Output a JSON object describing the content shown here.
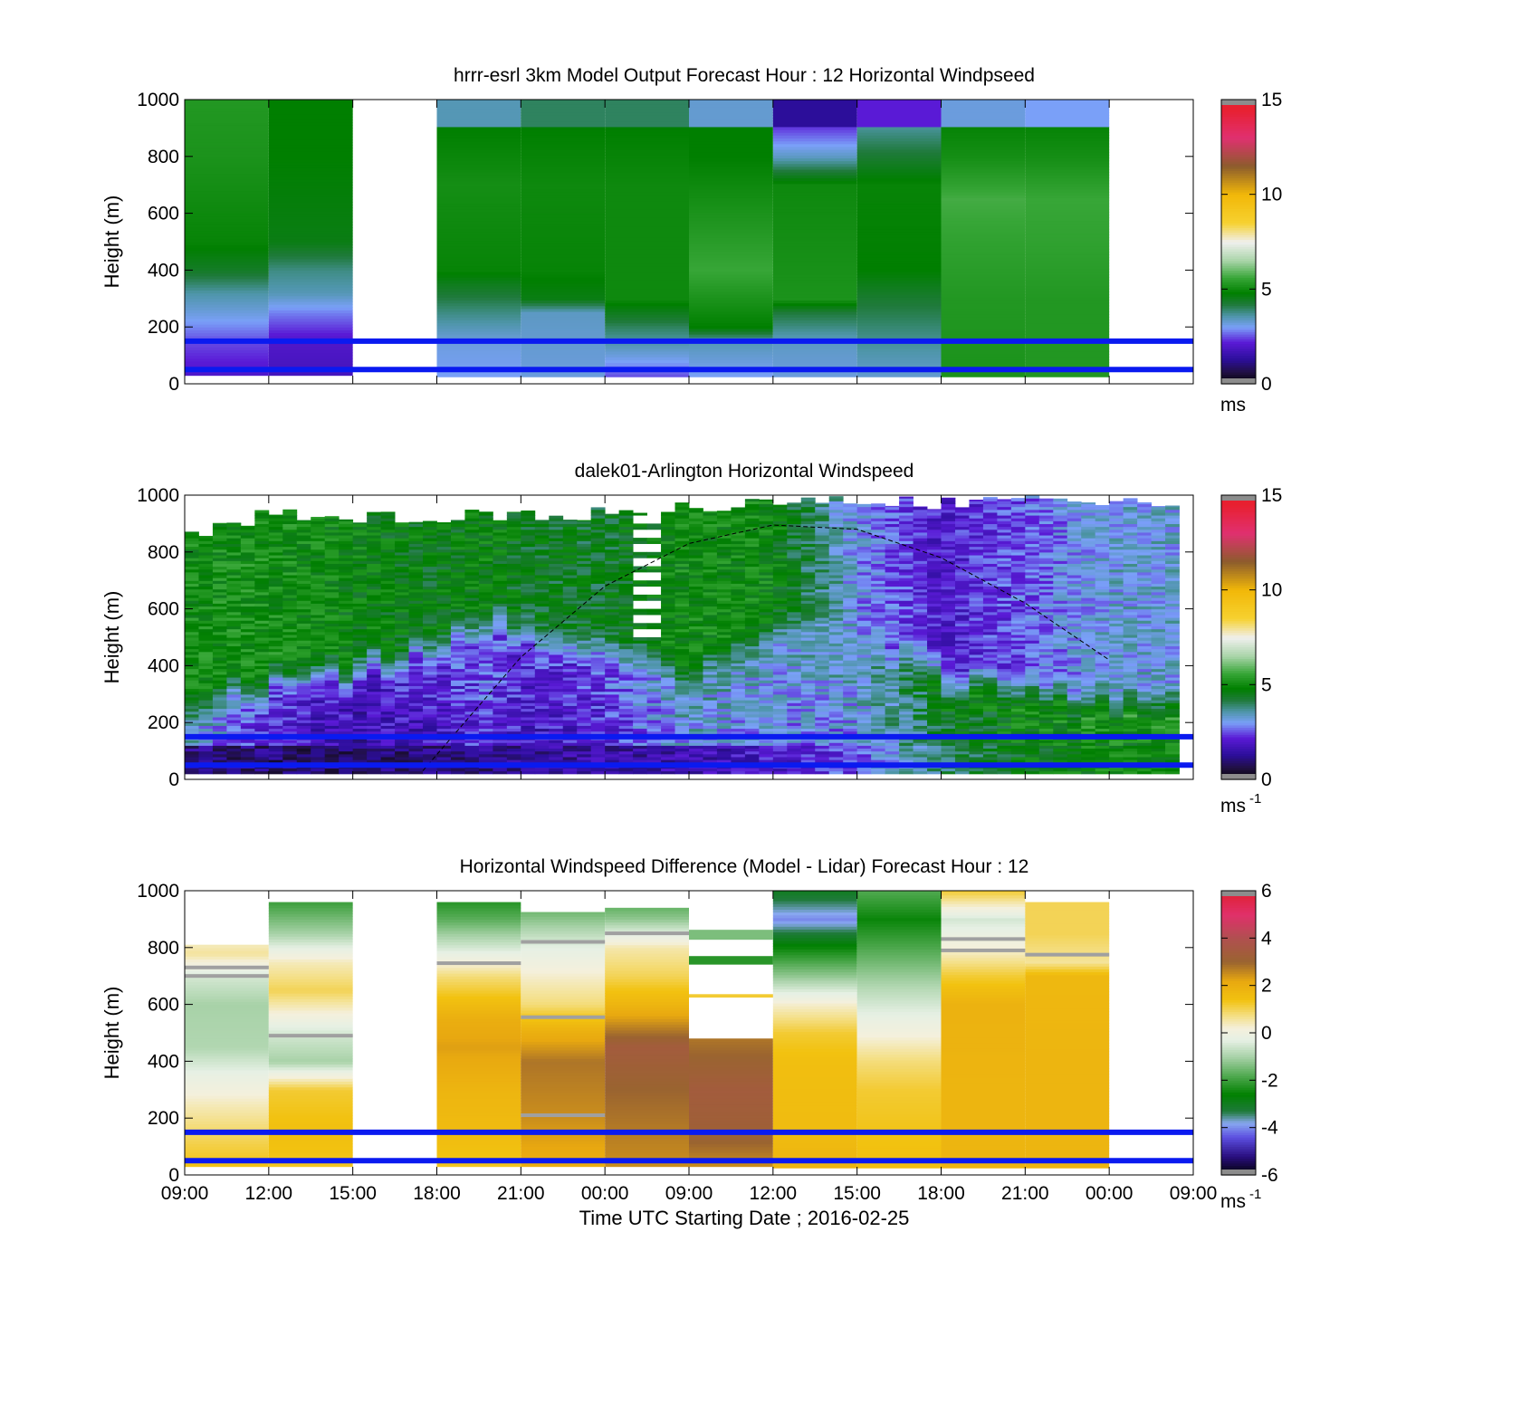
{
  "chart_data": [
    {
      "type": "heatmap",
      "title": "hrrr-esrl 3km Model Output   Forecast Hour : 12 Horizontal Windpseed",
      "ylabel": "Height (m)",
      "ylim": [
        0,
        1000
      ],
      "yticks": [
        "0",
        "200",
        "400",
        "600",
        "800",
        "1000"
      ],
      "colorbar": {
        "range": [
          0,
          15
        ],
        "ticks": [
          "0",
          "5",
          "10",
          "15"
        ],
        "unit": "ms",
        "unit_sup": ""
      },
      "colormap": "speed",
      "reference_lines_m": [
        50,
        150
      ],
      "columns": [
        {
          "start": 0,
          "end": 3,
          "top": 1000,
          "bottom": 30,
          "profile": [
            [
              30,
              2.0
            ],
            [
              150,
              2.5
            ],
            [
              250,
              3.2
            ],
            [
              320,
              3.6
            ],
            [
              400,
              4.4
            ],
            [
              500,
              4.9
            ],
            [
              800,
              5.2
            ],
            [
              1000,
              5.3
            ]
          ]
        },
        {
          "start": 3,
          "end": 6,
          "top": 1000,
          "bottom": 30,
          "profile": [
            [
              30,
              1.8
            ],
            [
              150,
              2.0
            ],
            [
              250,
              2.8
            ],
            [
              320,
              3.5
            ],
            [
              400,
              3.8
            ],
            [
              500,
              4.6
            ],
            [
              800,
              4.8
            ],
            [
              1000,
              4.8
            ]
          ]
        },
        {
          "start": 9,
          "end": 12,
          "top": 1000,
          "bottom": 25,
          "profile": [
            [
              25,
              3.0
            ],
            [
              150,
              3.2
            ],
            [
              250,
              3.8
            ],
            [
              350,
              4.5
            ],
            [
              400,
              4.9
            ],
            [
              700,
              5.1
            ],
            [
              900,
              4.8
            ],
            [
              910,
              3.5
            ],
            [
              1000,
              3.5
            ]
          ]
        },
        {
          "start": 12,
          "end": 15,
          "top": 1000,
          "bottom": 25,
          "profile": [
            [
              25,
              3.2
            ],
            [
              150,
              3.3
            ],
            [
              250,
              3.4
            ],
            [
              300,
              4.6
            ],
            [
              400,
              4.9
            ],
            [
              700,
              5.0
            ],
            [
              900,
              4.8
            ],
            [
              910,
              4.0
            ],
            [
              1000,
              4.0
            ]
          ]
        },
        {
          "start": 15,
          "end": 18,
          "top": 1000,
          "bottom": 25,
          "profile": [
            [
              25,
              2.5
            ],
            [
              100,
              3.2
            ],
            [
              200,
              4.0
            ],
            [
              300,
              5.0
            ],
            [
              700,
              5.0
            ],
            [
              900,
              4.8
            ],
            [
              910,
              4.0
            ],
            [
              1000,
              4.0
            ]
          ]
        },
        {
          "start": 18,
          "end": 21,
          "top": 1000,
          "bottom": 25,
          "profile": [
            [
              25,
              3.0
            ],
            [
              150,
              3.5
            ],
            [
              200,
              4.8
            ],
            [
              400,
              5.6
            ],
            [
              600,
              5.2
            ],
            [
              800,
              4.8
            ],
            [
              900,
              4.8
            ],
            [
              910,
              3.3
            ],
            [
              1000,
              3.3
            ]
          ]
        },
        {
          "start": 21,
          "end": 24,
          "top": 1000,
          "bottom": 25,
          "profile": [
            [
              25,
              3.2
            ],
            [
              150,
              3.4
            ],
            [
              250,
              4.2
            ],
            [
              300,
              5.2
            ],
            [
              700,
              5.0
            ],
            [
              800,
              3.4
            ],
            [
              900,
              2.4
            ],
            [
              910,
              1.3
            ],
            [
              1000,
              1.3
            ]
          ]
        },
        {
          "start": 24,
          "end": 27,
          "top": 1000,
          "bottom": 25,
          "profile": [
            [
              25,
              3.3
            ],
            [
              150,
              3.7
            ],
            [
              300,
              4.3
            ],
            [
              400,
              4.8
            ],
            [
              700,
              4.9
            ],
            [
              800,
              4.3
            ],
            [
              900,
              3.7
            ],
            [
              910,
              2.2
            ],
            [
              1000,
              2.2
            ]
          ]
        },
        {
          "start": 27,
          "end": 30,
          "top": 1000,
          "bottom": 25,
          "profile": [
            [
              25,
              5.2
            ],
            [
              300,
              5.3
            ],
            [
              500,
              5.5
            ],
            [
              650,
              5.7
            ],
            [
              800,
              5.1
            ],
            [
              900,
              4.9
            ],
            [
              910,
              3.2
            ],
            [
              1000,
              3.2
            ]
          ]
        },
        {
          "start": 30,
          "end": 33,
          "top": 1000,
          "bottom": 25,
          "profile": [
            [
              25,
              5.3
            ],
            [
              300,
              5.3
            ],
            [
              500,
              5.5
            ],
            [
              650,
              5.6
            ],
            [
              800,
              5.1
            ],
            [
              900,
              4.9
            ],
            [
              910,
              3.0
            ],
            [
              1000,
              3.0
            ]
          ]
        }
      ]
    },
    {
      "type": "heatmap",
      "title": "dalek01-Arlington  Horizontal Windspeed",
      "ylabel": "Height (m)",
      "ylim": [
        0,
        1000
      ],
      "yticks": [
        "0",
        "200",
        "400",
        "600",
        "800",
        "1000"
      ],
      "colorbar": {
        "range": [
          0,
          15
        ],
        "ticks": [
          "0",
          "5",
          "10",
          "15"
        ],
        "unit": "ms",
        "unit_sup": "-1"
      },
      "colormap": "speed",
      "reference_lines_m": [
        50,
        150
      ],
      "curve": {
        "style": "dashed",
        "x": [
          8.5,
          12,
          15,
          18,
          21,
          24,
          27,
          30,
          33
        ],
        "y": [
          30,
          430,
          680,
          830,
          895,
          880,
          780,
          620,
          420
        ]
      },
      "gap": {
        "start": 16.2,
        "end": 17,
        "from": 480,
        "to": 1000
      },
      "profiles": [
        {
          "t": 0,
          "top": 870,
          "pbl": 200,
          "low": 1.2,
          "mid": 3.6,
          "up": 5.0
        },
        {
          "t": 3,
          "top": 960,
          "pbl": 280,
          "low": 1.0,
          "mid": 2.4,
          "up": 5.1
        },
        {
          "t": 6,
          "top": 940,
          "pbl": 300,
          "low": 1.0,
          "mid": 1.9,
          "up": 4.8
        },
        {
          "t": 9,
          "top": 950,
          "pbl": 420,
          "low": 1.1,
          "mid": 2.3,
          "up": 4.6
        },
        {
          "t": 11,
          "top": 960,
          "pbl": 520,
          "low": 1.2,
          "mid": 2.8,
          "up": 4.8
        },
        {
          "t": 12,
          "top": 950,
          "pbl": 460,
          "low": 1.3,
          "mid": 2.2,
          "up": 4.5
        },
        {
          "t": 15,
          "top": 960,
          "pbl": 420,
          "low": 1.5,
          "mid": 2.5,
          "up": 4.4
        },
        {
          "t": 18,
          "top": 990,
          "pbl": 320,
          "low": 1.6,
          "mid": 3.5,
          "up": 5.0
        },
        {
          "t": 21,
          "top": 1000,
          "pbl": 480,
          "low": 2.0,
          "mid": 3.3,
          "up": 4.9
        },
        {
          "t": 24,
          "top": 1000,
          "pbl": 420,
          "low": 2.5,
          "mid": 3.3,
          "up": 3.0
        },
        {
          "t": 27,
          "top": 1000,
          "pbl": 300,
          "low": 4.0,
          "mid": 4.6,
          "up": 2.0
        },
        {
          "t": 30,
          "top": 1000,
          "pbl": 250,
          "low": 4.6,
          "mid": 5.0,
          "up": 2.6
        },
        {
          "t": 33,
          "top": 1000,
          "pbl": 200,
          "low": 5.0,
          "mid": 5.2,
          "up": 3.2
        }
      ]
    },
    {
      "type": "heatmap",
      "title": "Horizontal Windspeed Difference (Model - Lidar) Forecast Hour : 12",
      "ylabel": "Height (m)",
      "xlabel": "Time UTC  Starting Date ; 2016-02-25",
      "ylim": [
        0,
        1000
      ],
      "yticks": [
        "0",
        "200",
        "400",
        "600",
        "800",
        "1000"
      ],
      "xticks": [
        "09:00",
        "12:00",
        "15:00",
        "18:00",
        "21:00",
        "00:00",
        "09:00",
        "12:00",
        "15:00",
        "18:00",
        "21:00",
        "00:00",
        "09:00"
      ],
      "xlim_hours": [
        0,
        36
      ],
      "colorbar": {
        "range": [
          -6,
          6
        ],
        "ticks": [
          "-6",
          "-4",
          "-2",
          "0",
          "2",
          "4",
          "6"
        ],
        "unit": "ms",
        "unit_sup": "-1"
      },
      "colormap": "diff",
      "reference_lines_m": [
        50,
        150
      ],
      "columns": [
        {
          "start": 0,
          "end": 3,
          "top": 810,
          "bottom": 30,
          "profile": [
            [
              30,
              1.4
            ],
            [
              150,
              0.9
            ],
            [
              250,
              0.4
            ],
            [
              350,
              -0.2
            ],
            [
              450,
              -0.9
            ],
            [
              600,
              -1.0
            ],
            [
              700,
              -0.5
            ],
            [
              780,
              0.6
            ],
            [
              810,
              0.4
            ]
          ]
        },
        {
          "start": 3,
          "end": 6,
          "top": 960,
          "bottom": 30,
          "profile": [
            [
              30,
              1.3
            ],
            [
              150,
              1.5
            ],
            [
              300,
              1.2
            ],
            [
              400,
              -1.0
            ],
            [
              500,
              -0.5
            ],
            [
              650,
              1.0
            ],
            [
              750,
              0.4
            ],
            [
              850,
              -1.0
            ],
            [
              960,
              -2.0
            ]
          ]
        },
        {
          "start": 9,
          "end": 12,
          "top": 960,
          "bottom": 30,
          "profile": [
            [
              30,
              1.3
            ],
            [
              150,
              1.6
            ],
            [
              300,
              1.8
            ],
            [
              450,
              2.3
            ],
            [
              550,
              2.0
            ],
            [
              700,
              0.8
            ],
            [
              800,
              -0.5
            ],
            [
              900,
              -1.7
            ],
            [
              960,
              -2.2
            ]
          ]
        },
        {
          "start": 12,
          "end": 15,
          "top": 925,
          "bottom": 30,
          "profile": [
            [
              30,
              2.0
            ],
            [
              200,
              2.5
            ],
            [
              400,
              2.8
            ],
            [
              500,
              2.0
            ],
            [
              600,
              0.8
            ],
            [
              700,
              0.3
            ],
            [
              800,
              -0.3
            ],
            [
              925,
              -1.5
            ]
          ]
        },
        {
          "start": 15,
          "end": 18,
          "top": 940,
          "bottom": 30,
          "profile": [
            [
              30,
              2.5
            ],
            [
              300,
              3.0
            ],
            [
              450,
              3.4
            ],
            [
              600,
              1.8
            ],
            [
              700,
              1.0
            ],
            [
              800,
              0.5
            ],
            [
              900,
              -1.2
            ],
            [
              940,
              -1.6
            ]
          ]
        },
        {
          "start": 18,
          "end": 21,
          "top": 480,
          "bottom": 30,
          "profile": [
            [
              30,
              2.5
            ],
            [
              150,
              3.2
            ],
            [
              300,
              3.4
            ],
            [
              480,
              2.8
            ]
          ]
        },
        {
          "start": 21,
          "end": 24,
          "top": 1000,
          "bottom": 25,
          "profile": [
            [
              25,
              1.8
            ],
            [
              150,
              1.6
            ],
            [
              400,
              1.5
            ],
            [
              500,
              1.2
            ],
            [
              600,
              0.3
            ],
            [
              700,
              -1.2
            ],
            [
              800,
              -2.5
            ],
            [
              900,
              -4.0
            ],
            [
              1000,
              -3.0
            ]
          ]
        },
        {
          "start": 24,
          "end": 27,
          "top": 1000,
          "bottom": 25,
          "profile": [
            [
              25,
              1.5
            ],
            [
              300,
              1.2
            ],
            [
              400,
              0.8
            ],
            [
              550,
              -0.2
            ],
            [
              650,
              -0.8
            ],
            [
              750,
              -1.5
            ],
            [
              900,
              -2.5
            ],
            [
              1000,
              -1.8
            ]
          ]
        },
        {
          "start": 27,
          "end": 30,
          "top": 1000,
          "bottom": 25,
          "profile": [
            [
              25,
              1.8
            ],
            [
              300,
              1.8
            ],
            [
              600,
              1.9
            ],
            [
              700,
              1.2
            ],
            [
              800,
              0.2
            ],
            [
              900,
              -0.5
            ],
            [
              1000,
              1.2
            ]
          ]
        },
        {
          "start": 30,
          "end": 33,
          "top": 960,
          "bottom": 25,
          "profile": [
            [
              25,
              1.8
            ],
            [
              400,
              1.8
            ],
            [
              700,
              1.7
            ],
            [
              750,
              0.6
            ],
            [
              850,
              1.0
            ],
            [
              960,
              1.0
            ]
          ]
        }
      ],
      "stripes": [
        {
          "start": 18,
          "end": 21,
          "y": 755,
          "h": 30,
          "value": -2.2
        },
        {
          "start": 18,
          "end": 21,
          "y": 845,
          "h": 35,
          "value": -1.4
        },
        {
          "start": 18,
          "end": 21,
          "y": 630,
          "h": 12,
          "value": 1.2
        }
      ],
      "gray_lines": [
        {
          "start": 0,
          "end": 3,
          "y": 700
        },
        {
          "start": 0,
          "end": 3,
          "y": 730
        },
        {
          "start": 3,
          "end": 6,
          "y": 490
        },
        {
          "start": 9,
          "end": 12,
          "y": 745
        },
        {
          "start": 12,
          "end": 15,
          "y": 210
        },
        {
          "start": 12,
          "end": 15,
          "y": 555
        },
        {
          "start": 12,
          "end": 15,
          "y": 820
        },
        {
          "start": 15,
          "end": 18,
          "y": 850
        },
        {
          "start": 27,
          "end": 30,
          "y": 790
        },
        {
          "start": 27,
          "end": 30,
          "y": 830
        },
        {
          "start": 30,
          "end": 33,
          "y": 775
        }
      ]
    }
  ]
}
